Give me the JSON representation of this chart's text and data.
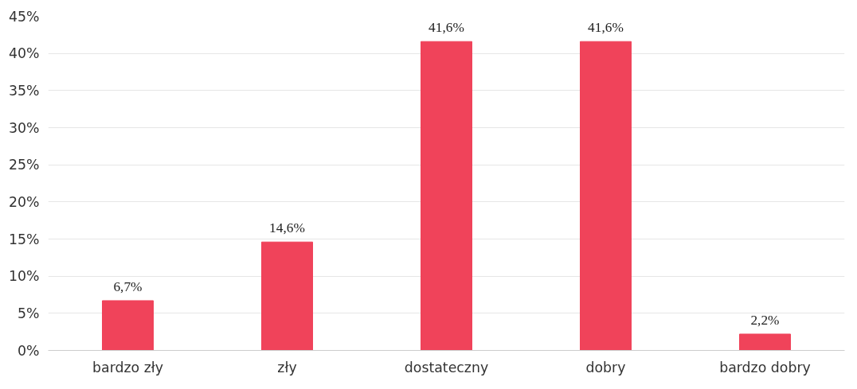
{
  "chart_data": {
    "type": "bar",
    "categories": [
      "bardzo zły",
      "zły",
      "dostateczny",
      "dobry",
      "bardzo dobry"
    ],
    "values": [
      6.7,
      14.6,
      41.6,
      41.6,
      2.2
    ],
    "value_labels": [
      "6,7%",
      "14,6%",
      "41,6%",
      "41,6%",
      "2,2%"
    ],
    "color": "#f0435a",
    "ylim": [
      0,
      45
    ],
    "yticks": [
      {
        "value": 0,
        "label": "0%"
      },
      {
        "value": 5,
        "label": "5%"
      },
      {
        "value": 10,
        "label": "10%"
      },
      {
        "value": 15,
        "label": "15%"
      },
      {
        "value": 20,
        "label": "20%"
      },
      {
        "value": 25,
        "label": "25%"
      },
      {
        "value": 30,
        "label": "30%"
      },
      {
        "value": 35,
        "label": "35%"
      },
      {
        "value": 40,
        "label": "40%"
      },
      {
        "value": 45,
        "label": "45%"
      }
    ],
    "grid": "y"
  }
}
